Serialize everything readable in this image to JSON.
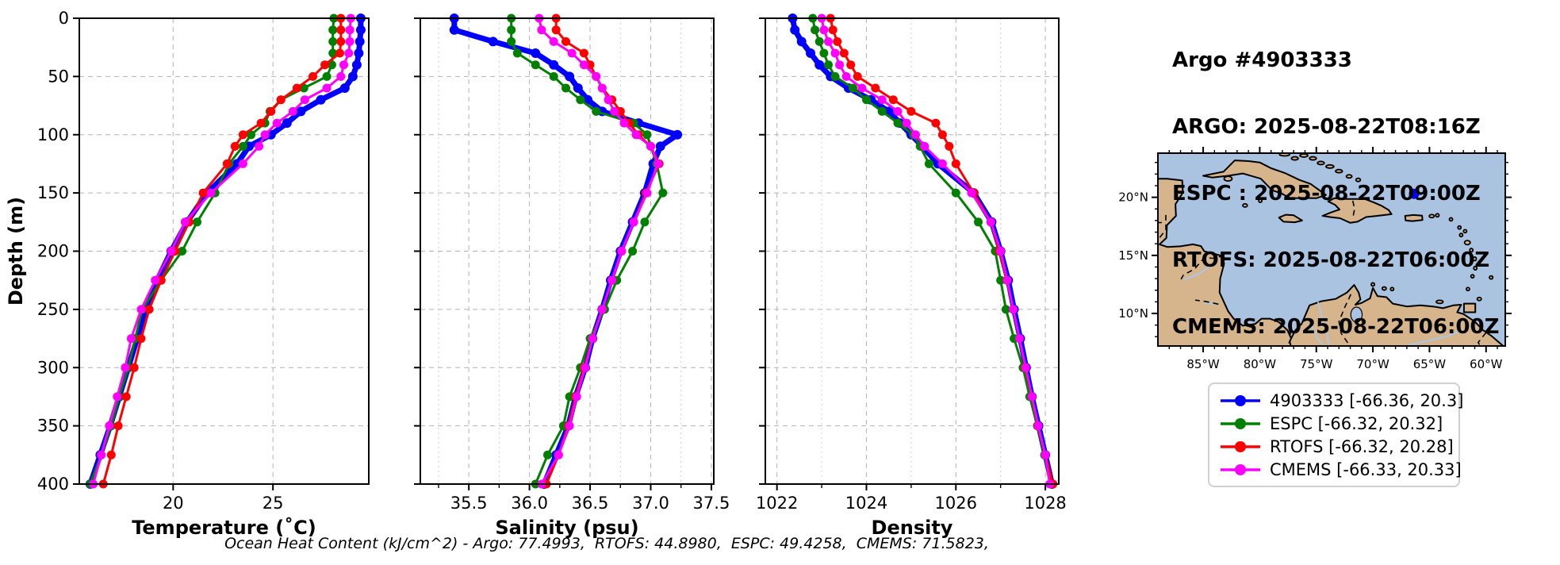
{
  "header": {
    "lines": [
      "Argo #4903333",
      "ARGO: 2025-08-22T08:16Z",
      "ESPC : 2025-08-22T09:00Z",
      "RTOFS: 2025-08-22T06:00Z",
      "CMEMS: 2025-08-22T06:00Z"
    ]
  },
  "caption": "Ocean Heat Content (kJ/cm^2) - Argo: 77.4993,  RTOFS: 44.8980,  ESPC: 49.4258,  CMEMS: 71.5823,",
  "legend": {
    "items": [
      {
        "label": "4903333 [-66.36, 20.3]",
        "color": "#0000ff"
      },
      {
        "label": "ESPC [-66.32, 20.32]",
        "color": "#008000"
      },
      {
        "label": "RTOFS [-66.32, 20.28]",
        "color": "#ff0000"
      },
      {
        "label": "CMEMS [-66.33, 20.33]",
        "color": "#ff00ff"
      }
    ]
  },
  "map": {
    "ocean_color": "#a9c3e1",
    "land_color": "#d6b48c",
    "lat_ticks": [
      {
        "v": 20,
        "label": "20°N"
      },
      {
        "v": 15,
        "label": "15°N"
      },
      {
        "v": 10,
        "label": "10°N"
      }
    ],
    "lon_ticks": [
      {
        "v": -85,
        "label": "85°W"
      },
      {
        "v": -80,
        "label": "80°W"
      },
      {
        "v": -75,
        "label": "75°W"
      },
      {
        "v": -70,
        "label": "70°W"
      },
      {
        "v": -65,
        "label": "65°W"
      },
      {
        "v": -60,
        "label": "60°W"
      }
    ],
    "float_marker": {
      "lon": -66.36,
      "lat": 20.3,
      "color": "#0000ff"
    }
  },
  "chart_data": {
    "type": "line",
    "kind": "ocean-profile-comparison",
    "ylabel": "Depth (m)",
    "ylim": [
      0,
      400
    ],
    "depth_ticks": [
      0,
      50,
      100,
      150,
      200,
      250,
      300,
      350,
      400
    ],
    "depth_m": [
      0,
      10,
      20,
      30,
      40,
      50,
      60,
      70,
      80,
      90,
      100,
      110,
      125,
      150,
      175,
      200,
      225,
      250,
      275,
      300,
      325,
      350,
      375,
      400
    ],
    "panels": [
      {
        "id": "temperature",
        "xlabel": "Temperature (˚C)",
        "xlim": [
          15.3,
          29.8
        ],
        "xticks": [
          20,
          25
        ],
        "xtick_labels": [
          "20",
          "25"
        ],
        "xminor": [],
        "series": [
          {
            "name": "4903333",
            "color": "#0000ff",
            "values": [
              29.4,
              29.4,
              29.35,
              29.3,
              29.2,
              29.0,
              28.6,
              27.4,
              26.4,
              25.7,
              24.9,
              23.8,
              23.2,
              21.7,
              20.7,
              19.9,
              19.2,
              18.65,
              18.2,
              17.75,
              17.3,
              16.85,
              16.35,
              15.85
            ]
          },
          {
            "name": "ESPC",
            "color": "#008000",
            "values": [
              28.05,
              28.0,
              28.0,
              28.0,
              27.95,
              27.7,
              26.55,
              25.4,
              24.85,
              24.6,
              23.9,
              23.5,
              22.8,
              22.1,
              21.2,
              20.45,
              19.4,
              18.45,
              18.1,
              17.75,
              17.3,
              16.9,
              16.4,
              15.85
            ]
          },
          {
            "name": "RTOFS",
            "color": "#ff0000",
            "values": [
              28.4,
              28.4,
              28.4,
              28.35,
              27.6,
              27.0,
              26.2,
              25.4,
              24.9,
              24.4,
              23.5,
              23.1,
              22.7,
              21.5,
              20.8,
              20.1,
              19.4,
              18.8,
              18.4,
              18.05,
              17.65,
              17.25,
              16.9,
              16.5
            ]
          },
          {
            "name": "CMEMS",
            "color": "#ff00ff",
            "values": [
              28.9,
              28.85,
              28.85,
              28.8,
              28.55,
              28.4,
              27.7,
              26.6,
              26.0,
              25.2,
              24.6,
              24.3,
              23.5,
              21.9,
              20.6,
              19.9,
              19.1,
              18.4,
              17.9,
              17.6,
              17.2,
              16.8,
              16.4,
              16.0
            ]
          }
        ]
      },
      {
        "id": "salinity",
        "xlabel": "Salinity (psu)",
        "xlim": [
          35.1,
          37.52
        ],
        "xticks": [
          35.5,
          36.0,
          36.5,
          37.0,
          37.5
        ],
        "xtick_labels": [
          "35.5",
          "36.0",
          "36.5",
          "37.0",
          "37.5"
        ],
        "xminor": [
          35.25,
          35.75,
          36.25,
          36.75,
          37.25
        ],
        "series": [
          {
            "name": "4903333",
            "color": "#0000ff",
            "values": [
              35.38,
              35.38,
              35.7,
              36.05,
              36.2,
              36.33,
              36.4,
              36.48,
              36.6,
              36.9,
              37.22,
              37.08,
              37.02,
              36.95,
              36.85,
              36.75,
              36.67,
              36.6,
              36.52,
              36.46,
              36.38,
              36.32,
              36.22,
              36.12
            ]
          },
          {
            "name": "ESPC",
            "color": "#008000",
            "values": [
              35.85,
              35.85,
              35.85,
              35.9,
              36.05,
              36.2,
              36.3,
              36.42,
              36.55,
              36.86,
              36.97,
              37.0,
              37.05,
              37.1,
              36.95,
              36.85,
              36.72,
              36.62,
              36.5,
              36.42,
              36.33,
              36.28,
              36.15,
              36.05
            ]
          },
          {
            "name": "RTOFS",
            "color": "#ff0000",
            "values": [
              36.22,
              36.22,
              36.3,
              36.45,
              36.5,
              36.55,
              36.6,
              36.68,
              36.75,
              36.82,
              36.9,
              37.0,
              37.07,
              36.96,
              36.86,
              36.76,
              36.68,
              36.6,
              36.52,
              36.45,
              36.38,
              36.32,
              36.24,
              36.14
            ]
          },
          {
            "name": "CMEMS",
            "color": "#ff00ff",
            "values": [
              36.08,
              36.1,
              36.2,
              36.35,
              36.45,
              36.55,
              36.6,
              36.65,
              36.7,
              36.78,
              36.88,
              37.0,
              37.06,
              36.97,
              36.86,
              36.76,
              36.68,
              36.6,
              36.52,
              36.46,
              36.39,
              36.33,
              36.24,
              36.1
            ]
          }
        ]
      },
      {
        "id": "density",
        "xlabel": "Density",
        "xlim": [
          1021.74,
          1028.3
        ],
        "xticks": [
          1022,
          1024,
          1026,
          1028
        ],
        "xtick_labels": [
          "1022",
          "1024",
          "1026",
          "1028"
        ],
        "xminor": [
          1023,
          1025,
          1027
        ],
        "series": [
          {
            "name": "4903333",
            "color": "#0000ff",
            "values": [
              1022.35,
              1022.4,
              1022.55,
              1022.75,
              1022.95,
              1023.2,
              1023.6,
              1024.1,
              1024.5,
              1024.75,
              1025.0,
              1025.25,
              1025.6,
              1026.4,
              1026.8,
              1027.0,
              1027.17,
              1027.3,
              1027.44,
              1027.57,
              1027.7,
              1027.85,
              1028.0,
              1028.15
            ]
          },
          {
            "name": "ESPC",
            "color": "#008000",
            "values": [
              1022.8,
              1022.85,
              1022.95,
              1023.05,
              1023.15,
              1023.3,
              1023.7,
              1024.0,
              1024.35,
              1024.7,
              1025.05,
              1025.2,
              1025.4,
              1026.0,
              1026.5,
              1026.88,
              1027.0,
              1027.12,
              1027.3,
              1027.5,
              1027.65,
              1027.82,
              1027.98,
              1028.12
            ]
          },
          {
            "name": "RTOFS",
            "color": "#ff0000",
            "values": [
              1023.2,
              1023.25,
              1023.35,
              1023.5,
              1023.65,
              1023.8,
              1024.2,
              1024.6,
              1025.0,
              1025.55,
              1025.7,
              1025.85,
              1026.0,
              1026.4,
              1026.78,
              1026.97,
              1027.14,
              1027.28,
              1027.42,
              1027.55,
              1027.7,
              1027.83,
              1028.0,
              1028.17
            ]
          },
          {
            "name": "CMEMS",
            "color": "#ff00ff",
            "values": [
              1023.0,
              1023.05,
              1023.15,
              1023.3,
              1023.4,
              1023.55,
              1023.9,
              1024.35,
              1024.7,
              1024.9,
              1025.1,
              1025.3,
              1025.7,
              1026.35,
              1026.78,
              1027.0,
              1027.15,
              1027.28,
              1027.42,
              1027.56,
              1027.7,
              1027.84,
              1028.0,
              1028.1
            ]
          }
        ]
      }
    ]
  }
}
